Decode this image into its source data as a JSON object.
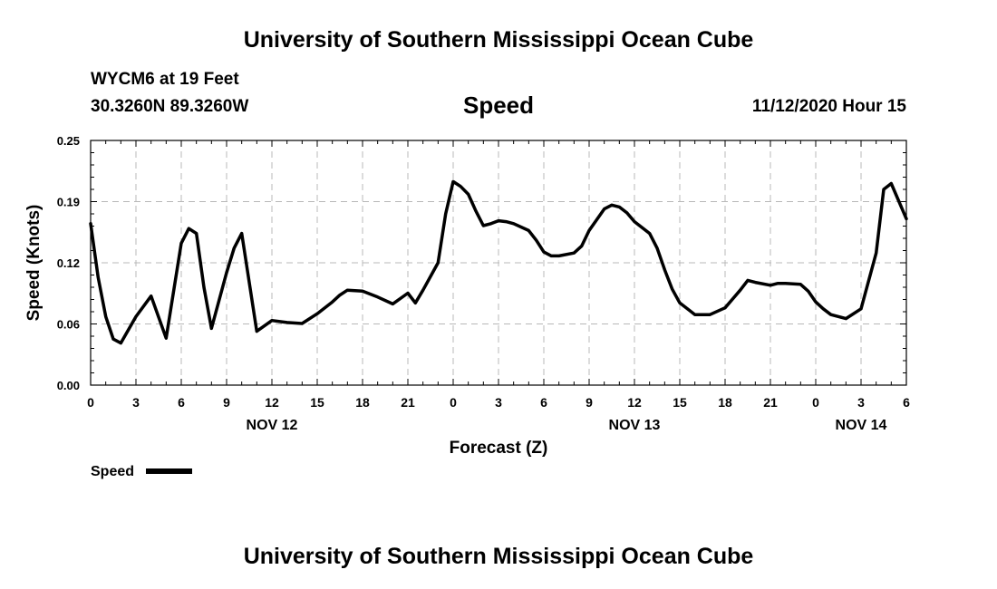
{
  "header": {
    "title": "University of Southern Mississippi Ocean Cube",
    "station": "WYCM6 at 19 Feet",
    "coordinates": "30.3260N 89.3260W",
    "run_time": "11/12/2020 Hour 15"
  },
  "footer": {
    "title": "University of Southern Mississippi Ocean Cube"
  },
  "chart_data": {
    "type": "line",
    "title": "Speed",
    "xlabel": "Forecast (Z)",
    "ylabel": "Speed (Knots)",
    "ylim": [
      0,
      0.25
    ],
    "yticks": [
      "0.00",
      "0.06",
      "0.12",
      "0.19",
      "0.25"
    ],
    "xlim_hours_from_nov12_00z": [
      0,
      54
    ],
    "xtick_labels": [
      "0",
      "3",
      "6",
      "9",
      "12",
      "15",
      "18",
      "21",
      "0",
      "3",
      "6",
      "9",
      "12",
      "15",
      "18",
      "21",
      "0",
      "3",
      "6"
    ],
    "date_labels": [
      {
        "label": "NOV 12",
        "at_tick": 4
      },
      {
        "label": "NOV 13",
        "at_tick": 12
      },
      {
        "label": "NOV 14",
        "at_tick": 17
      }
    ],
    "grid": true,
    "legend": {
      "position": "bottom-left",
      "entries": [
        "Speed"
      ]
    },
    "series": [
      {
        "name": "Speed",
        "color": "#000000",
        "x": [
          0,
          0.5,
          1,
          1.5,
          2,
          3,
          4,
          5,
          6,
          6.5,
          7,
          7.5,
          8,
          9,
          9.5,
          10,
          11,
          12,
          13,
          14,
          15,
          16,
          16.5,
          17,
          18,
          19,
          20,
          21,
          21.5,
          22,
          23,
          23.5,
          24,
          24.5,
          25,
          25.5,
          26,
          26.5,
          27,
          27.5,
          28,
          29,
          29.5,
          30,
          30.5,
          31,
          32,
          32.5,
          33,
          34,
          34.5,
          35,
          35.5,
          36,
          37,
          37.5,
          38,
          38.5,
          39,
          40,
          41,
          42,
          42.5,
          43,
          43.5,
          44,
          45,
          45.5,
          46,
          47,
          47.5,
          48,
          48.5,
          49,
          50,
          51,
          52,
          52.5,
          53,
          54
        ],
        "y": [
          0.165,
          0.11,
          0.07,
          0.047,
          0.043,
          0.07,
          0.091,
          0.048,
          0.145,
          0.16,
          0.155,
          0.1,
          0.058,
          0.115,
          0.14,
          0.155,
          0.055,
          0.066,
          0.064,
          0.063,
          0.073,
          0.085,
          0.092,
          0.097,
          0.096,
          0.09,
          0.083,
          0.094,
          0.084,
          0.097,
          0.125,
          0.175,
          0.208,
          0.203,
          0.195,
          0.178,
          0.163,
          0.165,
          0.168,
          0.167,
          0.165,
          0.158,
          0.148,
          0.136,
          0.132,
          0.132,
          0.135,
          0.142,
          0.158,
          0.18,
          0.184,
          0.182,
          0.176,
          0.167,
          0.155,
          0.14,
          0.118,
          0.098,
          0.084,
          0.072,
          0.072,
          0.079,
          0.088,
          0.097,
          0.107,
          0.105,
          0.102,
          0.104,
          0.104,
          0.103,
          0.096,
          0.085,
          0.078,
          0.072,
          0.068,
          0.078,
          0.135,
          0.2,
          0.206,
          0.17
        ]
      }
    ]
  }
}
